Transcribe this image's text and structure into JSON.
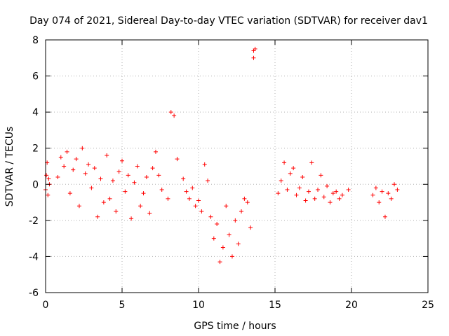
{
  "chart_data": {
    "type": "scatter",
    "title": "Day 074 of 2021, Sidereal Day-to-day VTEC variation (SDTVAR) for receiver dav1",
    "xlabel": "GPS time / hours",
    "ylabel": "SDTVAR / TECUs",
    "xlim": [
      0,
      25
    ],
    "ylim": [
      -6,
      8
    ],
    "xticks": [
      0,
      5,
      10,
      15,
      20,
      25
    ],
    "yticks": [
      -6,
      -4,
      -2,
      0,
      2,
      4,
      6,
      8
    ],
    "grid": true,
    "marker": "+",
    "color": "#ff0000",
    "series": [
      {
        "name": "SDTVAR",
        "x": [
          0.0,
          0.05,
          0.1,
          0.15,
          0.2,
          0.25,
          0.8,
          1.0,
          1.2,
          1.4,
          1.6,
          1.8,
          2.0,
          2.2,
          2.4,
          2.6,
          2.8,
          3.0,
          3.2,
          3.4,
          3.6,
          3.8,
          4.0,
          4.2,
          4.4,
          4.6,
          4.8,
          5.0,
          5.2,
          5.4,
          5.6,
          5.8,
          6.0,
          6.2,
          6.4,
          6.6,
          6.8,
          7.0,
          7.2,
          7.4,
          7.6,
          8.0,
          8.2,
          8.4,
          8.6,
          9.0,
          9.2,
          9.4,
          9.6,
          9.8,
          10.0,
          10.2,
          10.4,
          10.6,
          10.8,
          11.0,
          11.2,
          11.4,
          11.6,
          11.8,
          12.0,
          12.2,
          12.4,
          12.6,
          12.8,
          13.0,
          13.2,
          13.4,
          13.6,
          13.6,
          13.7,
          15.2,
          15.4,
          15.6,
          15.8,
          16.0,
          16.2,
          16.4,
          16.6,
          16.8,
          17.0,
          17.2,
          17.4,
          17.6,
          17.8,
          18.0,
          18.2,
          18.4,
          18.6,
          18.8,
          19.0,
          19.2,
          19.4,
          19.8,
          21.4,
          21.6,
          21.8,
          22.0,
          22.2,
          22.4,
          22.6,
          22.8,
          23.0
        ],
        "y": [
          -0.3,
          0.5,
          1.2,
          -0.6,
          0.3,
          0.0,
          0.4,
          1.5,
          1.0,
          1.8,
          -0.5,
          0.8,
          1.4,
          -1.2,
          2.0,
          0.6,
          1.1,
          -0.2,
          0.9,
          -1.8,
          0.3,
          -1.0,
          1.6,
          -0.8,
          0.2,
          -1.5,
          0.7,
          1.3,
          -0.4,
          0.5,
          -1.9,
          0.1,
          1.0,
          -1.2,
          -0.5,
          0.4,
          -1.6,
          0.9,
          1.8,
          0.5,
          -0.3,
          -0.8,
          4.0,
          3.8,
          1.4,
          0.3,
          -0.4,
          -0.8,
          -0.2,
          -1.2,
          -0.9,
          -1.5,
          1.1,
          0.2,
          -1.8,
          -3.0,
          -2.2,
          -4.3,
          -3.5,
          -1.2,
          -2.8,
          -4.0,
          -2.0,
          -3.3,
          -1.5,
          -0.8,
          -1.0,
          -2.4,
          7.4,
          7.0,
          7.5,
          -0.5,
          0.2,
          1.2,
          -0.3,
          0.6,
          0.9,
          -0.6,
          -0.2,
          0.4,
          -0.9,
          -0.4,
          1.2,
          -0.8,
          -0.3,
          0.5,
          -0.7,
          -0.1,
          -1.0,
          -0.5,
          -0.4,
          -0.8,
          -0.6,
          -0.3,
          -0.6,
          -0.2,
          -1.0,
          -0.4,
          -1.8,
          -0.5,
          -0.8,
          0.0,
          -0.3
        ]
      }
    ]
  }
}
